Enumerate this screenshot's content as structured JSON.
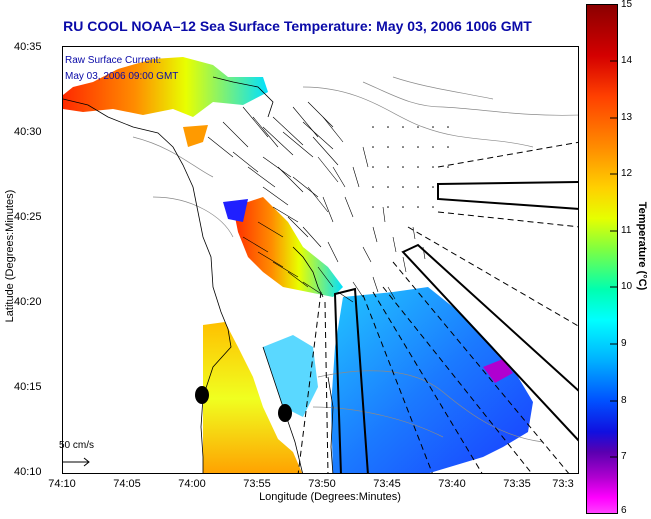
{
  "title": "RU COOL  NOAA–12  Sea Surface Temperature:  May 03, 2006 1006 GMT",
  "map": {
    "ylabel": "Latitude (Degrees:Minutes)",
    "xlabel": "Longitude (Degrees:Minutes)",
    "lat_ticks": [
      "40:35",
      "40:30",
      "40:25",
      "40:20",
      "40:15",
      "40:10"
    ],
    "lon_ticks": [
      "74:10",
      "74:05",
      "74:00",
      "73:55",
      "73:50",
      "73:45",
      "73:40",
      "73:35",
      "73:3"
    ],
    "current_label_1": "Raw Surface Current:",
    "current_label_2": "May 03, 2006 09:00 GMT",
    "scale_label": "50 cm/s"
  },
  "colorbar": {
    "label": "Temperature (°C)",
    "ticks": [
      "15",
      "14",
      "13",
      "12",
      "11",
      "10",
      "9",
      "8",
      "7",
      "6"
    ],
    "min": 6,
    "max": 15
  },
  "colors": {
    "title": "#0a0aa8",
    "land": "#ffffff",
    "cold": "#1a3cff",
    "warm": "#ff3000"
  }
}
